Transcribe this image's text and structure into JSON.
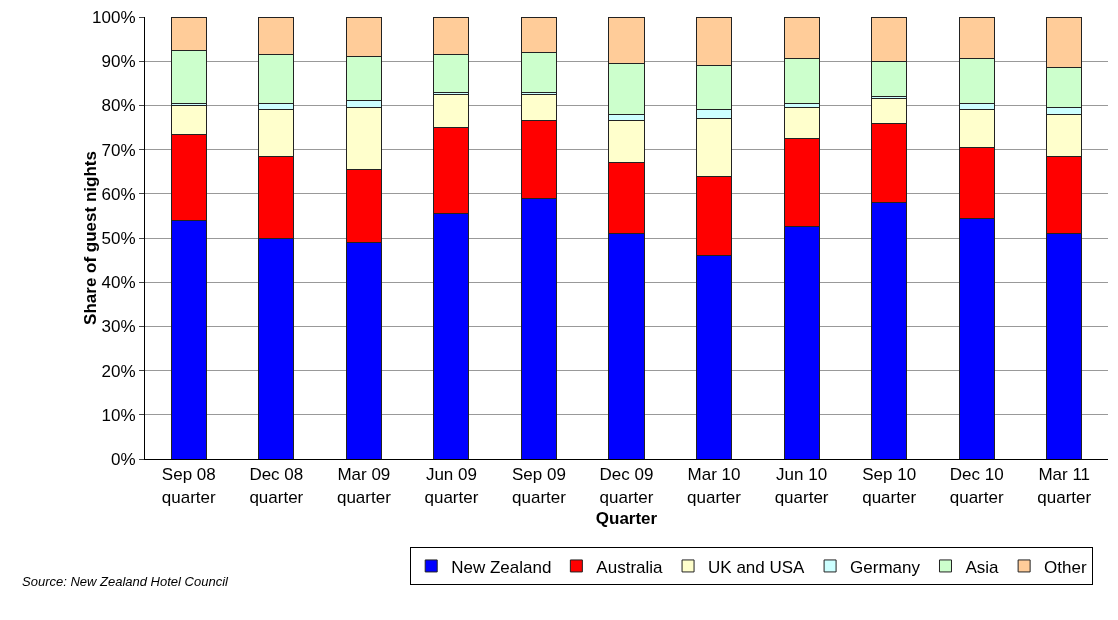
{
  "chart_data": {
    "type": "bar",
    "stacked": true,
    "xlabel": "Quarter",
    "ylabel": "Share of guest nights",
    "categories": [
      "Sep 08 quarter",
      "Dec 08 quarter",
      "Mar 09 quarter",
      "Jun 09 quarter",
      "Sep 09 quarter",
      "Dec 09 quarter",
      "Mar 10 quarter",
      "Jun 10 quarter",
      "Sep 10 quarter",
      "Dec 10 quarter",
      "Mar 11 quarter"
    ],
    "series": [
      {
        "name": "New Zealand",
        "color": "#0000ff",
        "values": [
          54,
          50,
          49,
          55.5,
          59,
          51,
          46,
          52.5,
          58,
          54.5,
          51
        ]
      },
      {
        "name": "Australia",
        "color": "#ff0000",
        "values": [
          19.5,
          18.5,
          16.5,
          19.5,
          17.5,
          16,
          18,
          20,
          18,
          16,
          17.5
        ]
      },
      {
        "name": "UK and USA",
        "color": "#ffffcc",
        "values": [
          6.5,
          10.5,
          14,
          7.5,
          6,
          9.5,
          13,
          7,
          5.5,
          8.5,
          9.5
        ]
      },
      {
        "name": "Germany",
        "color": "#ccffff",
        "values": [
          0.5,
          1.5,
          1.5,
          0.5,
          0.5,
          1.5,
          2,
          1,
          0.5,
          1.5,
          1.5
        ]
      },
      {
        "name": "Asia",
        "color": "#ccffcc",
        "values": [
          12,
          11,
          10,
          8.5,
          9,
          11.5,
          10,
          10,
          8,
          10,
          9
        ]
      },
      {
        "name": "Other",
        "color": "#ffcc99",
        "values": [
          7.5,
          8.5,
          9,
          8.5,
          8,
          10.5,
          11,
          9.5,
          10,
          9.5,
          11.5
        ]
      }
    ],
    "ylim": [
      0,
      100
    ],
    "yticks": [
      {
        "value": 0,
        "label": "0%"
      },
      {
        "value": 10,
        "label": "10%"
      },
      {
        "value": 20,
        "label": "20%"
      },
      {
        "value": 30,
        "label": "30%"
      },
      {
        "value": 40,
        "label": "40%"
      },
      {
        "value": 50,
        "label": "50%"
      },
      {
        "value": 60,
        "label": "60%"
      },
      {
        "value": 70,
        "label": "70%"
      },
      {
        "value": 80,
        "label": "80%"
      },
      {
        "value": 90,
        "label": "90%"
      },
      {
        "value": 100,
        "label": "100%"
      }
    ],
    "grid": "y",
    "legend": "bottom",
    "annotations": [
      "Source: New Zealand Hotel Council"
    ]
  }
}
